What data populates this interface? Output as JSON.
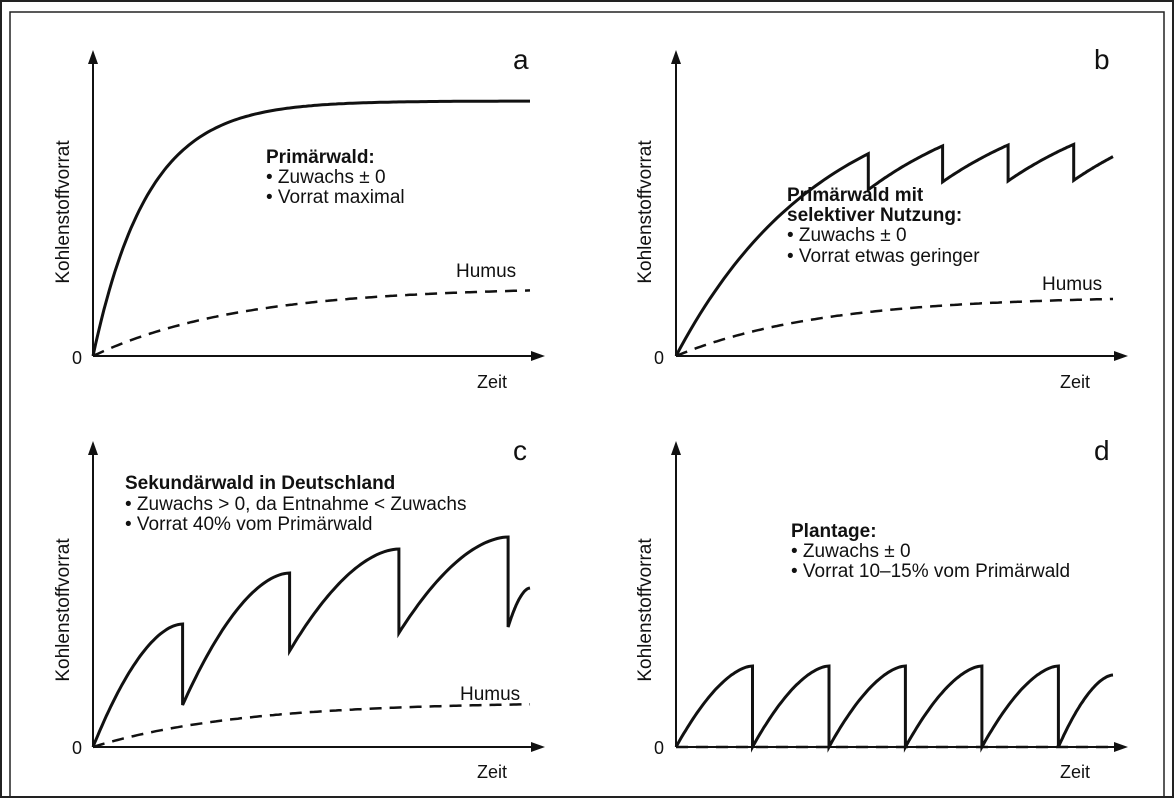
{
  "frame_color": "#222222",
  "curve_color": "#111111",
  "panels": [
    {
      "letter": "a",
      "ylabel": "Kohlenstoffvorrat",
      "xlabel": "Zeit",
      "zero": "0",
      "title": "Primärwald:",
      "bullets": [
        "• Zuwachs ± 0",
        "• Vorrat maximal"
      ],
      "humus_label": "Humus",
      "stock": {
        "type": "saturation",
        "level": 0.85,
        "rate": 8.0,
        "cuts": []
      },
      "humus": {
        "level": 0.23,
        "rate": 3.0
      }
    },
    {
      "letter": "b",
      "ylabel": "Kohlenstoffvorrat",
      "xlabel": "Zeit",
      "zero": "0",
      "title_lines": [
        "Primärwald mit",
        "selektiver Nutzung:"
      ],
      "bullets": [
        "• Zuwachs ± 0",
        "• Vorrat etwas geringer"
      ],
      "humus_label": "Humus",
      "stock": {
        "type": "selective",
        "level": 0.92,
        "rate": 3.0,
        "cuts": [
          0.44,
          0.61,
          0.76,
          0.91
        ],
        "drop": 0.12
      },
      "humus": {
        "level": 0.2,
        "rate": 3.0
      }
    },
    {
      "letter": "c",
      "ylabel": "Kohlenstoffvorrat",
      "xlabel": "Zeit",
      "zero": "0",
      "title": "Sekundärwald in Deutschland",
      "bullets": [
        "• Zuwachs > 0, da Entnahme < Zuwachs",
        "• Vorrat 40% vom Primärwald"
      ],
      "humus_label": "Humus",
      "stock": {
        "type": "rotation",
        "cuts": [
          0.205,
          0.45,
          0.7,
          0.95
        ],
        "peaks": [
          0.41,
          0.58,
          0.66,
          0.7,
          0.53
        ],
        "troughs": [
          0.14,
          0.32,
          0.38,
          0.4
        ]
      },
      "humus": {
        "level": 0.15,
        "rate": 3.0
      }
    },
    {
      "letter": "d",
      "ylabel": "Kohlenstoffvorrat",
      "xlabel": "Zeit",
      "zero": "0",
      "title": "Plantage:",
      "bullets": [
        "• Zuwachs ± 0",
        "• Vorrat 10–15% vom Primärwald"
      ],
      "humus_label": "",
      "stock": {
        "type": "plantation",
        "cuts": [
          0.175,
          0.35,
          0.525,
          0.7,
          0.875
        ],
        "peak": 0.27,
        "last_peak": 0.24
      },
      "humus": {
        "level": 0.0,
        "rate": 0.0
      }
    }
  ]
}
